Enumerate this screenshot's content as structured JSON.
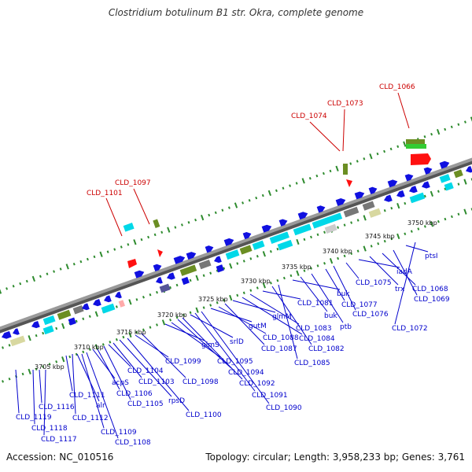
{
  "title": "Clostridium botulinum B1 str. Okra, complete genome",
  "footer": {
    "accession": "Accession: NC_010516",
    "summary": "Topology: circular; Length: 3,958,233 bp; Genes: 3,761"
  },
  "colors": {
    "backbone": "#8a8a8a",
    "tick": "#2e8b2e",
    "forward_label": "#cc0000",
    "reverse_label": "#0000cc",
    "gene_blue": "#1010e0",
    "gene_cyan": "#00d8e8",
    "gene_olive": "#6b8e23",
    "gene_red": "#ff1010"
  },
  "ruler": [
    "3705 kbp",
    "3710 kbp",
    "3715 kbp",
    "3720 kbp",
    "3725 kbp",
    "3730 kbp",
    "3735 kbp",
    "3740 kbp",
    "3745 kbp",
    "3750 kbp"
  ],
  "forward_labels": [
    "CLD_1101",
    "CLD_1097",
    "CLD_1074",
    "CLD_1073",
    "CLD_1066"
  ],
  "reverse_labels": [
    "CLD_1119",
    "CLD_1118",
    "CLD_1117",
    "CLD_1116",
    "CLD_1111",
    "CLD_1112",
    "alr",
    "CLD_1109",
    "CLD_1108",
    "acpS",
    "CLD_1106",
    "CLD_1105",
    "CLD_1104",
    "CLD_1103",
    "rpsD",
    "CLD_1100",
    "CLD_1099",
    "CLD_1098",
    "glmS",
    "CLD_1095",
    "CLD_1094",
    "CLD_1092",
    "srlD",
    "CLD_1091",
    "CLD_1090",
    "gutM",
    "CLD_1088",
    "CLD_1087",
    "glmM",
    "CLD_1084",
    "CLD_1083",
    "CLD_1081",
    "CLD_1082",
    "CLD_1085",
    "buk",
    "buk",
    "ptb",
    "CLD_1077",
    "CLD_1076",
    "CLD_1075",
    "iadA",
    "trx",
    "CLD_1068",
    "CLD_1069",
    "ptsI",
    "CLD_1072"
  ]
}
